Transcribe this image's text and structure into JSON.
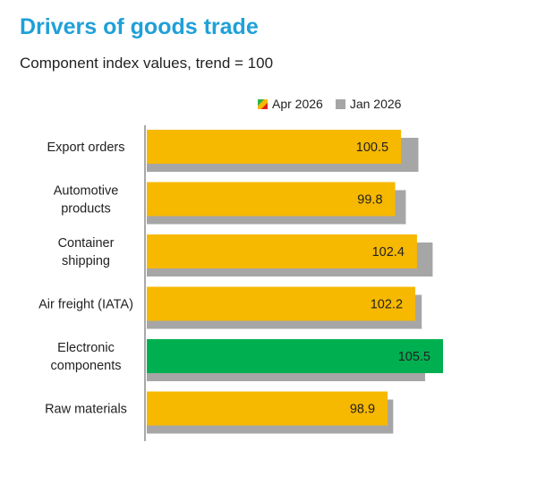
{
  "title": "Drivers of goods trade",
  "subtitle": "Component index values, trend = 100",
  "legend": {
    "current": "Apr 2026",
    "prior": "Jan 2026"
  },
  "colors": {
    "title": "#1fa0d8",
    "bar_default": "#f7b800",
    "bar_highlight": "#00b050",
    "bar_prior": "#a6a6a6",
    "axis": "#8c8c8c"
  },
  "chart_data": {
    "type": "bar",
    "orientation": "horizontal",
    "categories": [
      [
        "Export orders"
      ],
      [
        "Automotive",
        "products"
      ],
      [
        "Container",
        "shipping"
      ],
      [
        "Air freight (IATA)"
      ],
      [
        "Electronic",
        "components"
      ],
      [
        "Raw materials"
      ]
    ],
    "series": [
      {
        "name": "Apr 2026",
        "values": [
          100.5,
          99.8,
          102.4,
          102.2,
          105.5,
          98.9
        ],
        "labels": [
          "100.5",
          "99.8",
          "102.4",
          "102.2",
          "105.5",
          "98.9"
        ]
      },
      {
        "name": "Jan 2026",
        "values": [
          101.5,
          100.0,
          103.2,
          101.9,
          102.3,
          98.5
        ]
      }
    ],
    "highlight_index": 4,
    "xlim": [
      70,
      107
    ],
    "legend_position": "top-right",
    "grid": false
  }
}
